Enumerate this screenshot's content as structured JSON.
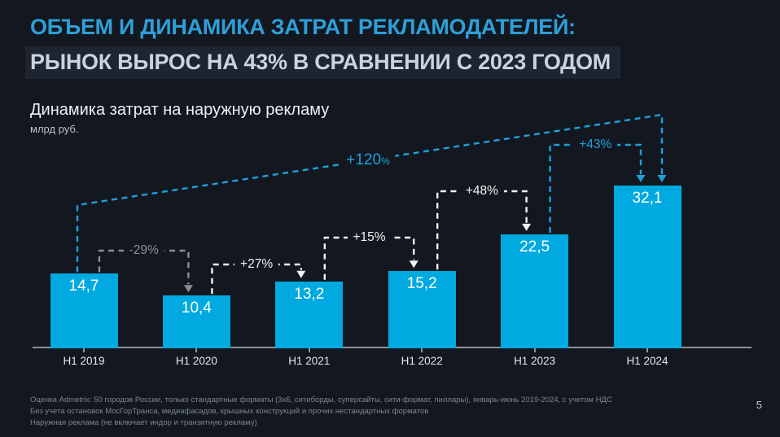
{
  "header": {
    "title_line1": "ОБЪЕМ И ДИНАМИКА ЗАТРАТ РЕКЛАМОДАТЕЛЕЙ:",
    "title_line2": "РЫНОК ВЫРОС НА 43% В СРАВНЕНИИ С 2023 ГОДОМ"
  },
  "chart": {
    "title": "Динамика затрат на наружную рекламу",
    "unit": "млрд руб."
  },
  "chart_data": {
    "type": "bar",
    "title": "Динамика затрат на наружную рекламу",
    "ylabel": "млрд руб.",
    "categories": [
      "H1 2019",
      "H1 2020",
      "H1 2021",
      "H1 2022",
      "H1 2023",
      "H1 2024"
    ],
    "values": [
      14.7,
      10.4,
      13.2,
      15.2,
      22.5,
      32.1
    ],
    "value_labels": [
      "14,7",
      "10,4",
      "13,2",
      "15,2",
      "22,5",
      "32,1"
    ],
    "ylim": [
      0,
      35
    ],
    "grid": false,
    "legend": false,
    "bar_color": "#00A9E0",
    "axis_color": "#8E9297",
    "colors": {
      "up": "#F2F2F2",
      "down": "#8C8F93",
      "long": "#1FA0DA"
    },
    "yoy_annotations": [
      {
        "from": 0,
        "to": 1,
        "label": "-29%",
        "trend": "down"
      },
      {
        "from": 1,
        "to": 2,
        "label": "+27%",
        "trend": "up"
      },
      {
        "from": 2,
        "to": 3,
        "label": "+15%",
        "trend": "up"
      },
      {
        "from": 3,
        "to": 4,
        "label": "+48%",
        "trend": "up"
      }
    ],
    "long_annotations": [
      {
        "from": 0,
        "to": 5,
        "label": "+120%",
        "small_percent": true
      },
      {
        "from": 4,
        "to": 5,
        "label": "+43%",
        "small_percent": false
      }
    ]
  },
  "theme": {
    "background": "#131820",
    "highlight_box": "#1E2530",
    "accent_blue": "#2E9FD8",
    "subtitle_text": "#C8D4DF"
  },
  "footer": {
    "notes": [
      "Оценка Admetrix: 50 городов России, только стандартные форматы (3х6, ситиборды, суперсайты, сити-формат, пиллары), январь-июнь 2019-2024, с учетом НДС",
      "Без учета остановок МосГорТранса, медиафасадов, крышных конструкций и прочих нестандартных форматов",
      "Наружная реклама (не включает индор и транзитную рекламу)"
    ],
    "page_number": "5"
  }
}
